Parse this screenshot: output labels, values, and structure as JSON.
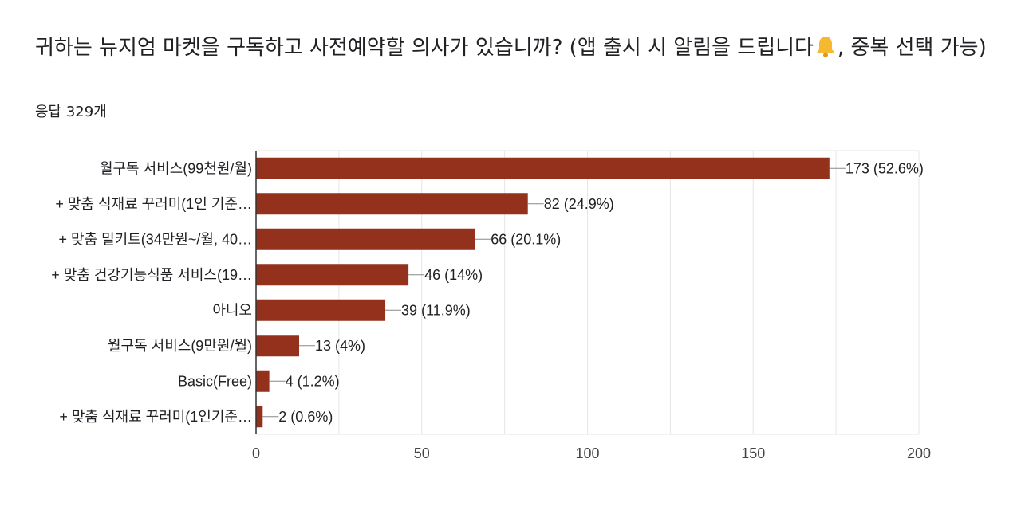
{
  "question": {
    "title": "귀하는 뉴지엄 마켓을 구독하고 사전예약할 의사가 있습니까? (앱 출시 시 알림을 드립니다",
    "bell_icon": "bell-icon",
    "title_suffix": ", 중복 선택 가능)",
    "responses": "응답 329개"
  },
  "colors": {
    "bar": "#93311c",
    "grid": "#e6e6e6",
    "axis": "#333333"
  },
  "chart_data": {
    "type": "bar",
    "orientation": "horizontal",
    "categories": [
      "월구독 서비스(99천원/월)",
      "+ 맞춤 식재료 꾸러미(1인 기준…",
      "+ 맞춤 밀키트(34만원~/월, 40…",
      "+ 맞춤 건강기능식품 서비스(19…",
      "아니오",
      "월구독 서비스(9만원/월)",
      "Basic(Free)",
      "+ 맞춤 식재료 꾸러미(1인기준…"
    ],
    "values": [
      173,
      82,
      66,
      46,
      39,
      13,
      4,
      2
    ],
    "value_labels": [
      "173 (52.6%)",
      "82 (24.9%)",
      "66 (20.1%)",
      "46 (14%)",
      "39 (11.9%)",
      "13 (4%)",
      "4 (1.2%)",
      "2 (0.6%)"
    ],
    "xticks": [
      0,
      50,
      100,
      150,
      200
    ],
    "xlim": [
      0,
      200
    ],
    "grid": true
  }
}
